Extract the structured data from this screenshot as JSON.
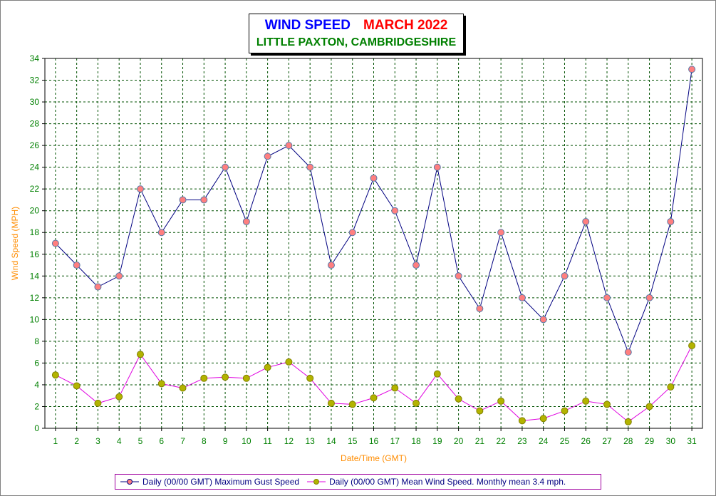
{
  "chart_data": {
    "type": "line",
    "title": "WIND SPEED",
    "title_month": "MARCH 2022",
    "subtitle": "LITTLE PAXTON, CAMBRIDGESHIRE",
    "xlabel": "Date/Time (GMT)",
    "ylabel": "Wind Speed (MPH)",
    "ylim": [
      0,
      34
    ],
    "yticks": [
      0,
      2,
      4,
      6,
      8,
      10,
      12,
      14,
      16,
      18,
      20,
      22,
      24,
      26,
      28,
      30,
      32,
      34
    ],
    "grid": true,
    "legend_position": "bottom",
    "x": [
      1,
      2,
      3,
      4,
      5,
      6,
      7,
      8,
      9,
      10,
      11,
      12,
      13,
      14,
      15,
      16,
      17,
      18,
      19,
      20,
      21,
      22,
      23,
      24,
      25,
      26,
      27,
      28,
      29,
      30,
      31
    ],
    "series": [
      {
        "name": "Daily (00/00 GMT) Maximum Gust Speed",
        "line_color": "#000080",
        "marker_color": "#ff7f7f",
        "values": [
          17,
          15,
          13,
          14,
          22,
          18,
          21,
          21,
          24,
          19,
          25,
          26,
          24,
          15,
          18,
          23,
          20,
          15,
          24,
          14,
          11,
          18,
          12,
          10,
          14,
          19,
          12,
          7,
          12,
          19,
          33
        ]
      },
      {
        "name": "Daily (00/00 GMT) Mean Wind Speed. Monthly mean 3.4 mph.",
        "line_color": "#e000e0",
        "marker_color": "#b3b300",
        "values": [
          4.9,
          3.9,
          2.3,
          2.9,
          6.8,
          4.1,
          3.7,
          4.6,
          4.7,
          4.6,
          5.6,
          6.1,
          4.6,
          2.3,
          2.2,
          2.8,
          3.7,
          2.3,
          5.0,
          2.7,
          1.6,
          2.5,
          0.7,
          0.9,
          1.6,
          2.5,
          2.2,
          0.6,
          2.0,
          3.8,
          7.6
        ]
      }
    ]
  }
}
